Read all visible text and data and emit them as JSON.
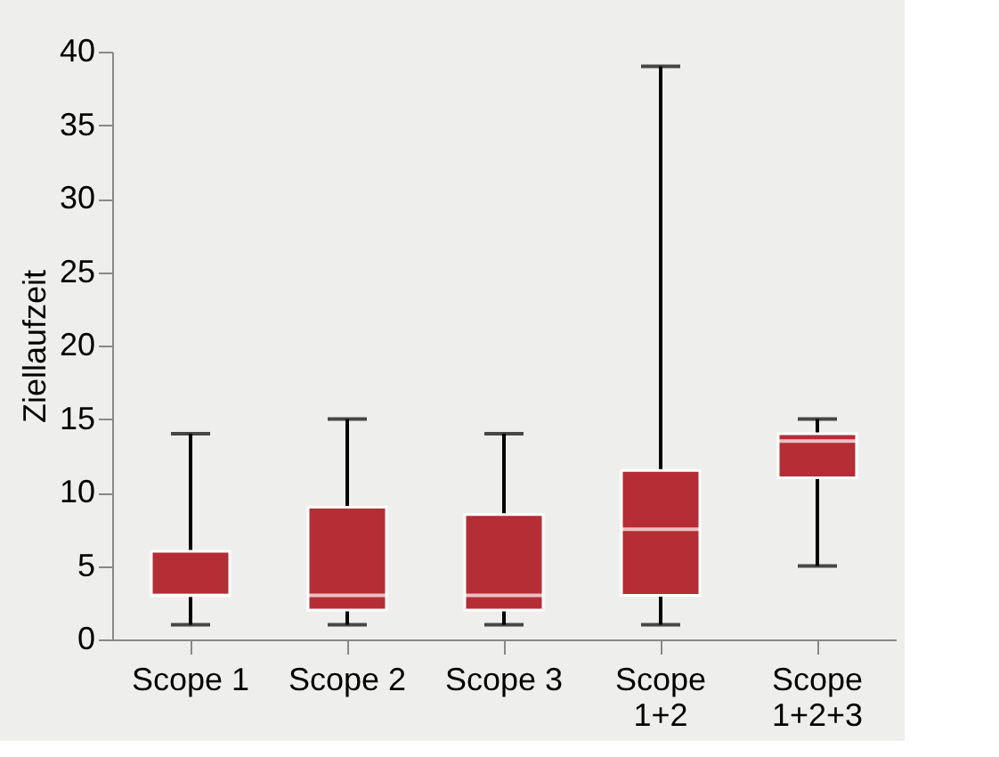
{
  "chart_data": {
    "type": "box",
    "ylabel": "Ziellaufzeit",
    "categories": [
      "Scope 1",
      "Scope 2",
      "Scope 3",
      "Scope 1+2",
      "Scope 1+2+3"
    ],
    "series": [
      {
        "color": "#b52d35",
        "boxes": [
          {
            "low": 1,
            "q1": 3,
            "median": 3,
            "q3": 6,
            "high": 14
          },
          {
            "low": 1,
            "q1": 2,
            "median": 3,
            "q3": 9,
            "high": 15
          },
          {
            "low": 1,
            "q1": 2,
            "median": 3,
            "q3": 8.5,
            "high": 14
          },
          {
            "low": 1,
            "q1": 3,
            "median": 7.5,
            "q3": 11.5,
            "high": 39
          },
          {
            "low": 5,
            "q1": 11,
            "median": 13.5,
            "q3": 14,
            "high": 15
          }
        ]
      }
    ],
    "ylim": [
      0,
      40
    ],
    "yticks": [
      0,
      5,
      10,
      15,
      20,
      25,
      30,
      35,
      40
    ],
    "grid": false
  }
}
